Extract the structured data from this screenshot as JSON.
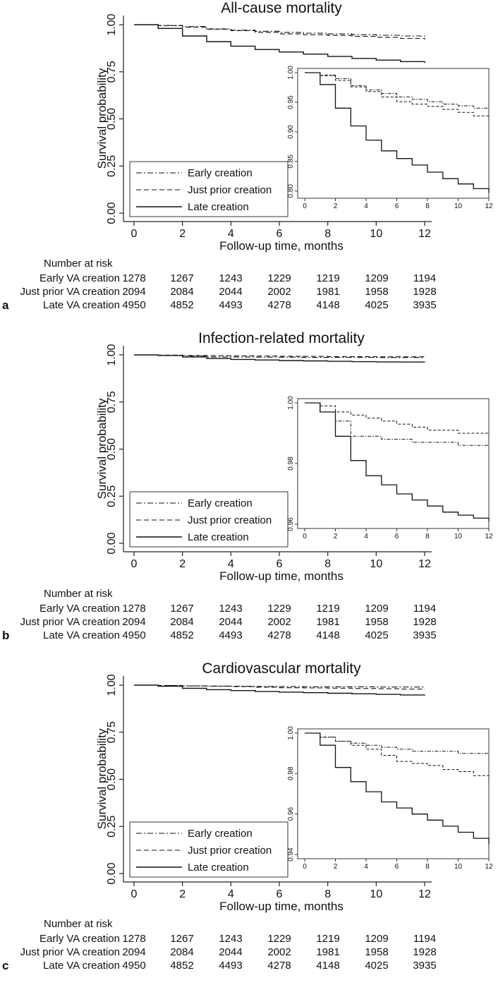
{
  "chart_data": [
    {
      "type": "line",
      "panel_label": "a",
      "title": "All-cause mortality",
      "xlabel": "Follow-up time, months",
      "ylabel": "Survival probability",
      "xlim": [
        0,
        12
      ],
      "ylim": [
        0,
        1
      ],
      "xticks": [
        "0",
        "2",
        "4",
        "6",
        "8",
        "10",
        "12"
      ],
      "yticks": [
        "0.00",
        "0.25",
        "0.50",
        "0.75",
        "1.00"
      ],
      "x": [
        0,
        1,
        2,
        3,
        4,
        5,
        6,
        7,
        8,
        9,
        10,
        11,
        12
      ],
      "series": [
        {
          "name": "Early creation",
          "values": [
            1.0,
            0.996,
            0.99,
            0.978,
            0.971,
            0.965,
            0.959,
            0.955,
            0.951,
            0.947,
            0.944,
            0.94,
            0.937
          ]
        },
        {
          "name": "Just prior creation",
          "values": [
            1.0,
            0.995,
            0.987,
            0.976,
            0.968,
            0.959,
            0.951,
            0.947,
            0.943,
            0.938,
            0.933,
            0.927,
            0.921
          ]
        },
        {
          "name": "Late creation",
          "values": [
            1.0,
            0.98,
            0.94,
            0.91,
            0.886,
            0.868,
            0.855,
            0.844,
            0.832,
            0.821,
            0.812,
            0.804,
            0.797
          ]
        }
      ],
      "inset": {
        "ylim": [
          0.795,
          1.0
        ],
        "yticks": [
          "0.80",
          "0.85",
          "0.90",
          "0.95",
          "1.00"
        ],
        "xticks": [
          "0",
          "2",
          "4",
          "6",
          "8",
          "10",
          "12"
        ]
      },
      "legend": [
        "Early creation",
        "Just prior creation",
        "Late creation"
      ],
      "risk": {
        "title": "Number at risk",
        "rows": [
          {
            "label": "Early VA creation",
            "values": [
              "1278",
              "1267",
              "1243",
              "1229",
              "1219",
              "1209",
              "1194"
            ]
          },
          {
            "label": "Just prior VA creation",
            "values": [
              "2094",
              "2084",
              "2044",
              "2002",
              "1981",
              "1958",
              "1928"
            ]
          },
          {
            "label": "Late VA creation",
            "values": [
              "4950",
              "4852",
              "4493",
              "4278",
              "4148",
              "4025",
              "3935"
            ]
          }
        ]
      }
    },
    {
      "type": "line",
      "panel_label": "b",
      "title": "Infection-related mortality",
      "xlabel": "Follow-up time, months",
      "ylabel": "Survival probability",
      "xlim": [
        0,
        12
      ],
      "ylim": [
        0,
        1
      ],
      "xticks": [
        "0",
        "2",
        "4",
        "6",
        "8",
        "10",
        "12"
      ],
      "yticks": [
        "0.00",
        "0.25",
        "0.50",
        "0.75",
        "1.00"
      ],
      "x": [
        0,
        1,
        2,
        3,
        4,
        5,
        6,
        7,
        8,
        9,
        10,
        11,
        12
      ],
      "series": [
        {
          "name": "Early creation",
          "values": [
            1.0,
            0.997,
            0.994,
            0.989,
            0.989,
            0.988,
            0.988,
            0.987,
            0.987,
            0.987,
            0.986,
            0.986,
            0.986
          ]
        },
        {
          "name": "Just prior creation",
          "values": [
            1.0,
            0.999,
            0.997,
            0.996,
            0.995,
            0.994,
            0.993,
            0.992,
            0.991,
            0.991,
            0.99,
            0.99,
            0.989
          ]
        },
        {
          "name": "Late creation",
          "values": [
            1.0,
            0.997,
            0.989,
            0.981,
            0.976,
            0.973,
            0.97,
            0.968,
            0.966,
            0.964,
            0.963,
            0.962,
            0.961
          ]
        }
      ],
      "inset": {
        "ylim": [
          0.96,
          1.0
        ],
        "yticks": [
          "0.96",
          "0.98",
          "1.00"
        ],
        "xticks": [
          "0",
          "2",
          "4",
          "6",
          "8",
          "10",
          "12"
        ]
      },
      "legend": [
        "Early creation",
        "Just prior creation",
        "Late creation"
      ],
      "risk": {
        "title": "Number at risk",
        "rows": [
          {
            "label": "Early VA creation",
            "values": [
              "1278",
              "1267",
              "1243",
              "1229",
              "1219",
              "1209",
              "1194"
            ]
          },
          {
            "label": "Just prior VA creation",
            "values": [
              "2094",
              "2084",
              "2044",
              "2002",
              "1981",
              "1958",
              "1928"
            ]
          },
          {
            "label": "Late VA creation",
            "values": [
              "4950",
              "4852",
              "4493",
              "4278",
              "4148",
              "4025",
              "3935"
            ]
          }
        ]
      }
    },
    {
      "type": "line",
      "panel_label": "c",
      "title": "Cardiovascular mortality",
      "xlabel": "Follow-up time, months",
      "ylabel": "Survival probability",
      "xlim": [
        0,
        12
      ],
      "ylim": [
        0,
        1
      ],
      "xticks": [
        "0",
        "2",
        "4",
        "6",
        "8",
        "10",
        "12"
      ],
      "yticks": [
        "0.00",
        "0.25",
        "0.50",
        "0.75",
        "1.00"
      ],
      "x": [
        0,
        1,
        2,
        3,
        4,
        5,
        6,
        7,
        8,
        9,
        10,
        11,
        12
      ],
      "series": [
        {
          "name": "Early creation",
          "values": [
            1.0,
            0.998,
            0.996,
            0.995,
            0.994,
            0.993,
            0.992,
            0.991,
            0.991,
            0.991,
            0.99,
            0.99,
            0.99
          ]
        },
        {
          "name": "Just prior creation",
          "values": [
            1.0,
            0.998,
            0.996,
            0.994,
            0.992,
            0.989,
            0.986,
            0.985,
            0.984,
            0.982,
            0.981,
            0.979,
            0.976
          ]
        },
        {
          "name": "Late creation",
          "values": [
            1.0,
            0.994,
            0.983,
            0.976,
            0.971,
            0.966,
            0.963,
            0.96,
            0.957,
            0.954,
            0.951,
            0.948,
            0.945
          ]
        }
      ],
      "inset": {
        "ylim": [
          0.94,
          1.0
        ],
        "yticks": [
          "0.94",
          "0.96",
          "0.98",
          "1.00"
        ],
        "xticks": [
          "0",
          "2",
          "4",
          "6",
          "8",
          "10",
          "12"
        ]
      },
      "legend": [
        "Early creation",
        "Just prior creation",
        "Late creation"
      ],
      "risk": {
        "title": "Number at risk",
        "rows": [
          {
            "label": "Early VA creation",
            "values": [
              "1278",
              "1267",
              "1243",
              "1229",
              "1219",
              "1209",
              "1194"
            ]
          },
          {
            "label": "Just prior VA creation",
            "values": [
              "2094",
              "2084",
              "2044",
              "2002",
              "1981",
              "1958",
              "1928"
            ]
          },
          {
            "label": "Late VA creation",
            "values": [
              "4950",
              "4852",
              "4493",
              "4278",
              "4148",
              "4025",
              "3935"
            ]
          }
        ]
      }
    }
  ]
}
